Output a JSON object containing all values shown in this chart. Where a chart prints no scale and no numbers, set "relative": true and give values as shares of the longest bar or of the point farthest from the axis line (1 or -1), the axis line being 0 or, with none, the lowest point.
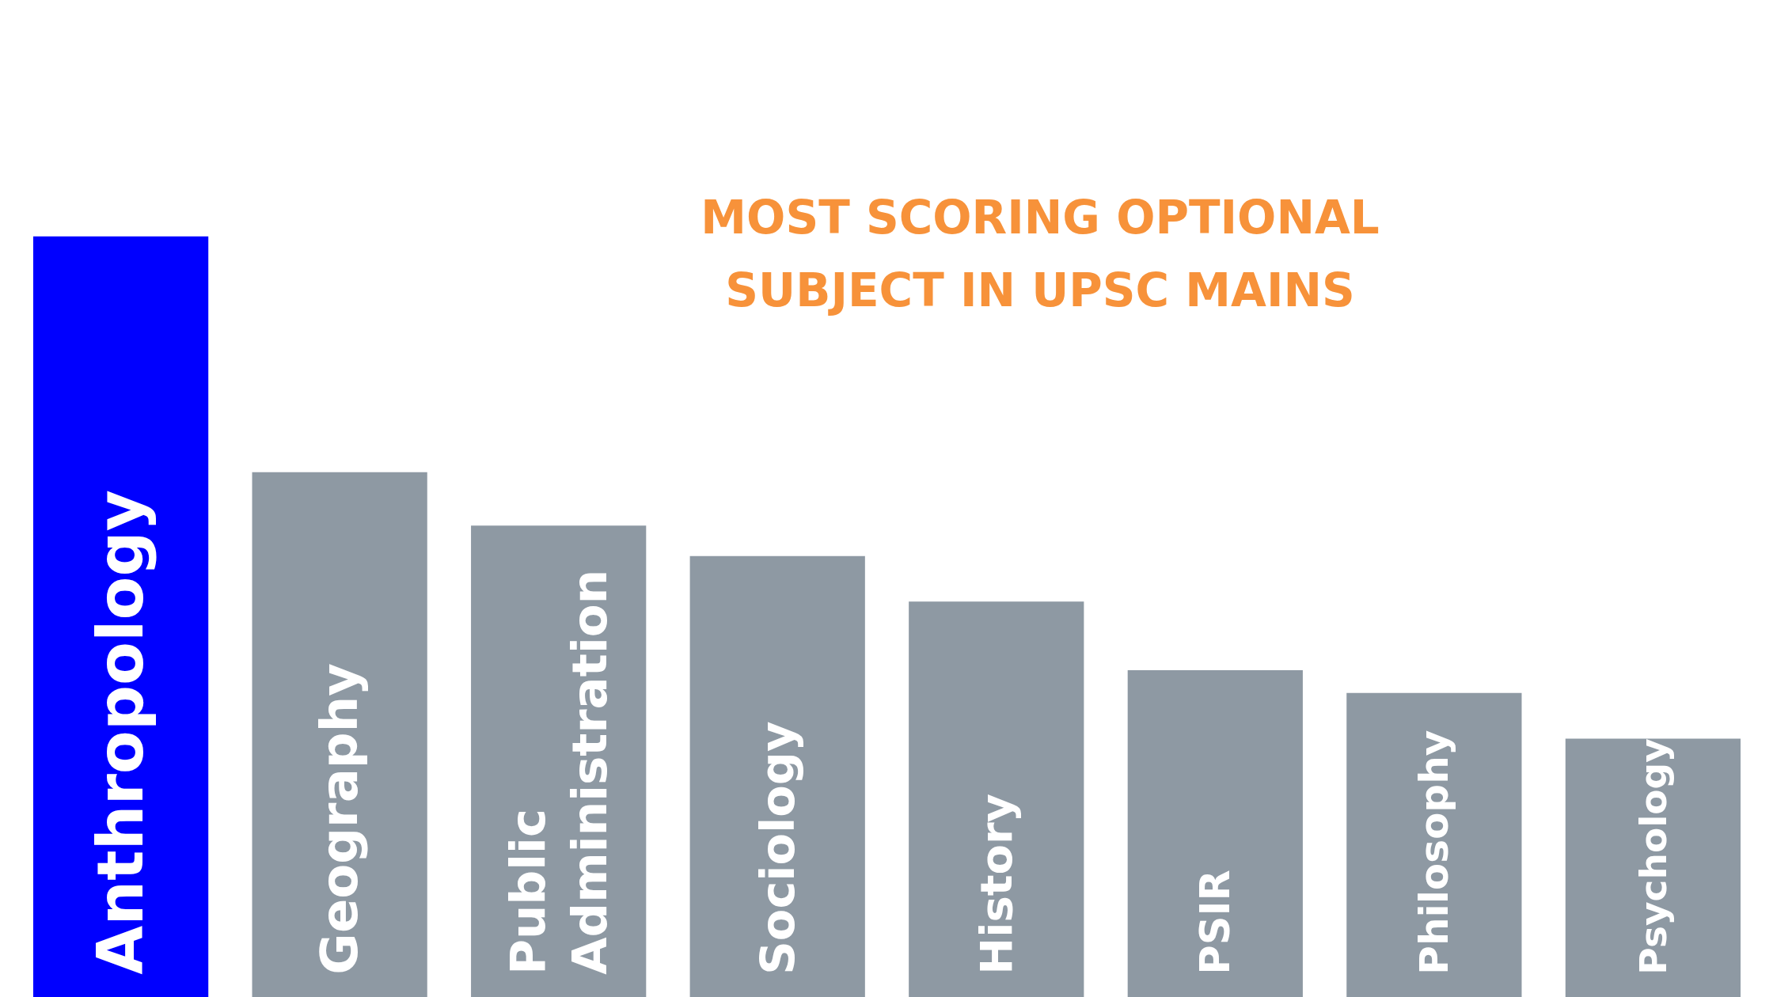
{
  "chart_data": {
    "type": "bar",
    "title": "MOST SCORING OPTIONAL\nSUBJECT IN UPSC MAINS",
    "relative": true,
    "categories": [
      "Anthropology",
      "Geography",
      "Public\nAdministration",
      "Sociology",
      "History",
      "PSIR",
      "Philosophy",
      "Psychology"
    ],
    "values": [
      1,
      0.69,
      0.62,
      0.58,
      0.52,
      0.43,
      0.4,
      0.34
    ],
    "colors": [
      "#0000ff",
      "#8e99a3",
      "#8e99a3",
      "#8e99a3",
      "#8e99a3",
      "#8e99a3",
      "#8e99a3",
      "#8e99a3"
    ]
  }
}
